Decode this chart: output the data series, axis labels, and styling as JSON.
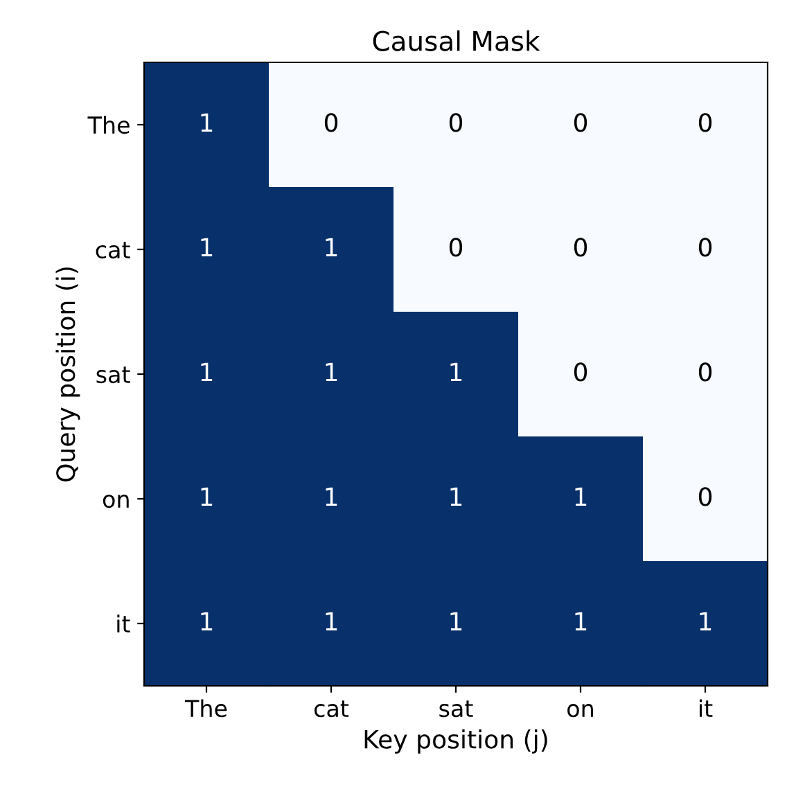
{
  "chart_data": {
    "type": "heatmap",
    "title": "Causal Mask",
    "xlabel": "Key position (j)",
    "ylabel": "Query position (i)",
    "categories": [
      "The",
      "cat",
      "sat",
      "on",
      "it"
    ],
    "y_categories": [
      "The",
      "cat",
      "sat",
      "on",
      "it"
    ],
    "cells": [
      [
        1,
        0,
        0,
        0,
        0
      ],
      [
        1,
        1,
        0,
        0,
        0
      ],
      [
        1,
        1,
        1,
        0,
        0
      ],
      [
        1,
        1,
        1,
        1,
        0
      ],
      [
        1,
        1,
        1,
        1,
        1
      ]
    ],
    "colors": [
      "#f7fbff",
      "#08306b"
    ],
    "data_labels": true
  }
}
